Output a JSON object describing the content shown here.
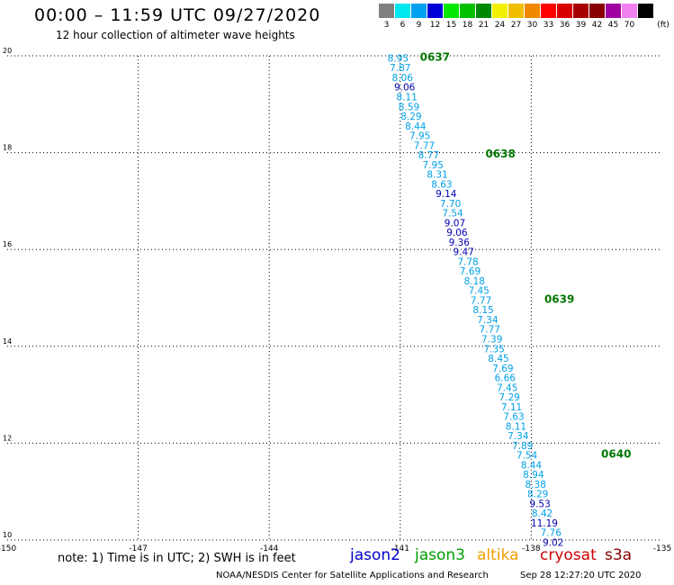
{
  "header": {
    "title": "00:00 – 11:59 UTC 09/27/2020",
    "subtitle": "12 hour collection of altimeter wave heights"
  },
  "scale": {
    "unit": "(ft)",
    "items": [
      {
        "label": "3",
        "color": "#808080"
      },
      {
        "label": "6",
        "color": "#00e8f0"
      },
      {
        "label": "9",
        "color": "#00a0f0"
      },
      {
        "label": "12",
        "color": "#0000d8"
      },
      {
        "label": "15",
        "color": "#00e800"
      },
      {
        "label": "18",
        "color": "#00c000"
      },
      {
        "label": "21",
        "color": "#008800"
      },
      {
        "label": "24",
        "color": "#f0f000"
      },
      {
        "label": "27",
        "color": "#f0c000"
      },
      {
        "label": "30",
        "color": "#f08800"
      },
      {
        "label": "33",
        "color": "#ff0000"
      },
      {
        "label": "36",
        "color": "#d80000"
      },
      {
        "label": "39",
        "color": "#a80000"
      },
      {
        "label": "42",
        "color": "#880000"
      },
      {
        "label": "45",
        "color": "#a000a0"
      },
      {
        "label": "70",
        "color": "#f080f0"
      },
      {
        "label": "",
        "color": "#000000"
      }
    ]
  },
  "map": {
    "lon_ticks": [
      "-150",
      "-147",
      "-144",
      "-141",
      "-138",
      "-135"
    ],
    "lat_ticks": [
      "10",
      "12",
      "14",
      "16",
      "18",
      "20"
    ],
    "lon_range": [
      -150,
      -135
    ],
    "lat_range": [
      10,
      20
    ],
    "grid": "dotted",
    "colors": {
      "light": "#00a0e8",
      "dark": "#0000b0",
      "time": "#007700"
    },
    "times": [
      {
        "label": "0637",
        "lon": -140.55,
        "lat": 19.9
      },
      {
        "label": "0638",
        "lon": -139.05,
        "lat": 17.9
      },
      {
        "label": "0639",
        "lon": -137.7,
        "lat": 14.9
      },
      {
        "label": "0640",
        "lon": -136.4,
        "lat": 11.7
      }
    ],
    "points": [
      {
        "value": "8.95",
        "lon": -141.05,
        "lat": 19.88,
        "dark": false
      },
      {
        "value": "7.87",
        "lon": -141.0,
        "lat": 19.68,
        "dark": false
      },
      {
        "value": "8.06",
        "lon": -140.95,
        "lat": 19.48,
        "dark": false
      },
      {
        "value": "9.06",
        "lon": -140.9,
        "lat": 19.28,
        "dark": true
      },
      {
        "value": "8.11",
        "lon": -140.85,
        "lat": 19.08,
        "dark": false
      },
      {
        "value": "8.59",
        "lon": -140.8,
        "lat": 18.88,
        "dark": false
      },
      {
        "value": "8.29",
        "lon": -140.75,
        "lat": 18.68,
        "dark": false
      },
      {
        "value": "8.44",
        "lon": -140.65,
        "lat": 18.48,
        "dark": false
      },
      {
        "value": "7.95",
        "lon": -140.55,
        "lat": 18.28,
        "dark": false
      },
      {
        "value": "7.77",
        "lon": -140.45,
        "lat": 18.08,
        "dark": false
      },
      {
        "value": "8.77",
        "lon": -140.35,
        "lat": 17.88,
        "dark": false
      },
      {
        "value": "7.95",
        "lon": -140.25,
        "lat": 17.68,
        "dark": false
      },
      {
        "value": "8.31",
        "lon": -140.15,
        "lat": 17.48,
        "dark": false
      },
      {
        "value": "8.63",
        "lon": -140.05,
        "lat": 17.28,
        "dark": false
      },
      {
        "value": "9.14",
        "lon": -139.95,
        "lat": 17.08,
        "dark": true
      },
      {
        "value": "7.70",
        "lon": -139.85,
        "lat": 16.88,
        "dark": false
      },
      {
        "value": "7.54",
        "lon": -139.8,
        "lat": 16.68,
        "dark": false
      },
      {
        "value": "9.07",
        "lon": -139.75,
        "lat": 16.48,
        "dark": true
      },
      {
        "value": "9.06",
        "lon": -139.7,
        "lat": 16.28,
        "dark": true
      },
      {
        "value": "9.36",
        "lon": -139.65,
        "lat": 16.08,
        "dark": true
      },
      {
        "value": "9.47",
        "lon": -139.55,
        "lat": 15.88,
        "dark": true
      },
      {
        "value": "7.78",
        "lon": -139.45,
        "lat": 15.68,
        "dark": false
      },
      {
        "value": "7.69",
        "lon": -139.4,
        "lat": 15.48,
        "dark": false
      },
      {
        "value": "8.18",
        "lon": -139.3,
        "lat": 15.28,
        "dark": false
      },
      {
        "value": "7.45",
        "lon": -139.2,
        "lat": 15.08,
        "dark": false
      },
      {
        "value": "7.77",
        "lon": -139.15,
        "lat": 14.88,
        "dark": false
      },
      {
        "value": "8.15",
        "lon": -139.1,
        "lat": 14.68,
        "dark": false
      },
      {
        "value": "7.34",
        "lon": -139.0,
        "lat": 14.48,
        "dark": false
      },
      {
        "value": "7.77",
        "lon": -138.95,
        "lat": 14.28,
        "dark": false
      },
      {
        "value": "7.39",
        "lon": -138.9,
        "lat": 14.08,
        "dark": false
      },
      {
        "value": "7.35",
        "lon": -138.85,
        "lat": 13.88,
        "dark": false
      },
      {
        "value": "8.45",
        "lon": -138.75,
        "lat": 13.68,
        "dark": false
      },
      {
        "value": "7.69",
        "lon": -138.65,
        "lat": 13.48,
        "dark": false
      },
      {
        "value": "6.66",
        "lon": -138.6,
        "lat": 13.28,
        "dark": false
      },
      {
        "value": "7.45",
        "lon": -138.55,
        "lat": 13.08,
        "dark": false
      },
      {
        "value": "7.29",
        "lon": -138.5,
        "lat": 12.88,
        "dark": false
      },
      {
        "value": "7.11",
        "lon": -138.45,
        "lat": 12.68,
        "dark": false
      },
      {
        "value": "7.63",
        "lon": -138.4,
        "lat": 12.48,
        "dark": false
      },
      {
        "value": "8.11",
        "lon": -138.35,
        "lat": 12.28,
        "dark": false
      },
      {
        "value": "7.34",
        "lon": -138.3,
        "lat": 12.08,
        "dark": false
      },
      {
        "value": "7.89",
        "lon": -138.2,
        "lat": 11.88,
        "dark": false
      },
      {
        "value": "7.54",
        "lon": -138.1,
        "lat": 11.68,
        "dark": false
      },
      {
        "value": "8.44",
        "lon": -138.0,
        "lat": 11.48,
        "dark": false
      },
      {
        "value": "8.94",
        "lon": -137.95,
        "lat": 11.28,
        "dark": false
      },
      {
        "value": "8.38",
        "lon": -137.9,
        "lat": 11.08,
        "dark": false
      },
      {
        "value": "8.29",
        "lon": -137.85,
        "lat": 10.88,
        "dark": false
      },
      {
        "value": "9.53",
        "lon": -137.8,
        "lat": 10.68,
        "dark": true
      },
      {
        "value": "8.42",
        "lon": -137.75,
        "lat": 10.48,
        "dark": false
      },
      {
        "value": "11.19",
        "lon": -137.7,
        "lat": 10.28,
        "dark": true
      },
      {
        "value": "7.76",
        "lon": -137.55,
        "lat": 10.08,
        "dark": false
      },
      {
        "value": "9.02",
        "lon": -137.5,
        "lat": 9.88,
        "dark": true
      }
    ]
  },
  "note": "note: 1) Time is in UTC; 2) SWH is in feet",
  "missions": [
    {
      "label": "jason2",
      "color": "#0000cc"
    },
    {
      "label": "jason3",
      "color": "#00a000"
    },
    {
      "label": "altika",
      "color": "#f0a000"
    },
    {
      "label": "cryosat",
      "color": "#cc0000"
    },
    {
      "label": "s3a",
      "color": "#880000"
    }
  ],
  "footer": {
    "credit": "NOAA/NESDIS Center for Satellite Applications and Research",
    "timestamp": "Sep 28 12:27:20 UTC 2020"
  }
}
